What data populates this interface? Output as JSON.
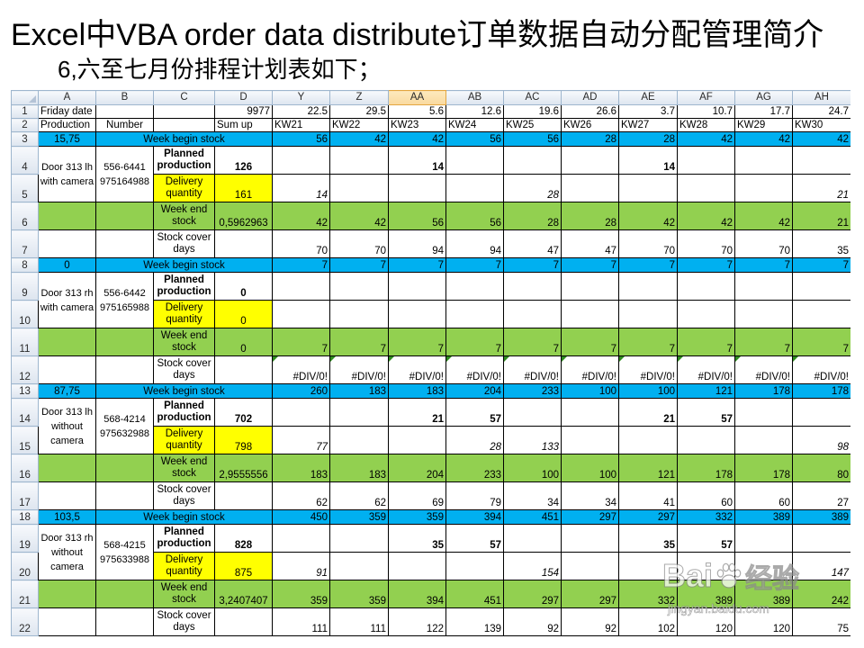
{
  "slide": {
    "title": "Excel中VBA order data distribute订单数据自动分配管理简介",
    "subtitle": "6,六至七月份排程计划表如下；"
  },
  "colors": {
    "week_begin_stock_row": "#00b0f0",
    "week_end_stock_row": "#92d050",
    "delivery_quantity": "#ffff00",
    "selected_column_header": "#f9d99f"
  },
  "sheet": {
    "columns": [
      {
        "label": "A"
      },
      {
        "label": "B"
      },
      {
        "label": "C"
      },
      {
        "label": "D"
      },
      {
        "label": "Y"
      },
      {
        "label": "Z"
      },
      {
        "label": "AA",
        "selected": true
      },
      {
        "label": "AB"
      },
      {
        "label": "AC"
      },
      {
        "label": "AD"
      },
      {
        "label": "AE"
      },
      {
        "label": "AF"
      },
      {
        "label": "AG"
      },
      {
        "label": "AH"
      }
    ],
    "row1": {
      "row": "1",
      "label": "Friday date",
      "sum": "9977",
      "weeks": [
        "22.5",
        "29.5",
        "5.6",
        "12.6",
        "19.6",
        "26.6",
        "3.7",
        "10.7",
        "17.7",
        "24.7"
      ]
    },
    "row2": {
      "row": "2",
      "production": "Production",
      "number": "Number",
      "sum": "Sum up",
      "weeks": [
        "KW21",
        "KW22",
        "KW23",
        "KW24",
        "KW25",
        "KW26",
        "KW27",
        "KW28",
        "KW29",
        "KW30"
      ]
    },
    "blocks": [
      {
        "rows": [
          "3",
          "4",
          "5",
          "6",
          "7"
        ],
        "begin_value": "15,75",
        "begin_label": "Week begin stock",
        "begin_stock": [
          "56",
          "42",
          "42",
          "56",
          "56",
          "28",
          "28",
          "42",
          "42",
          "42"
        ],
        "product": "Door 313 lh with camera",
        "number": "556-6441 975164988",
        "planned_label": "Planned production",
        "planned_sum": "126",
        "planned": [
          "",
          "",
          "14",
          "",
          "",
          "",
          "14",
          "",
          "",
          ""
        ],
        "delivery_label": "Delivery quantity",
        "delivery_sum": "161",
        "delivery": [
          "14",
          "",
          "",
          "",
          "28",
          "",
          "",
          "",
          "",
          "21"
        ],
        "end_label": "Week end stock",
        "end_sum": "0,5962963",
        "end_stock": [
          "42",
          "42",
          "56",
          "56",
          "28",
          "28",
          "42",
          "42",
          "42",
          "21"
        ],
        "cover_label": "Stock cover days",
        "cover": [
          "70",
          "70",
          "94",
          "94",
          "47",
          "47",
          "70",
          "70",
          "70",
          "35"
        ]
      },
      {
        "rows": [
          "8",
          "9",
          "10",
          "11",
          "12"
        ],
        "begin_value": "0",
        "begin_label": "Week begin stock",
        "begin_stock": [
          "7",
          "7",
          "7",
          "7",
          "7",
          "7",
          "7",
          "7",
          "7",
          "7"
        ],
        "product": "Door 313 rh with camera",
        "number": "556-6442 975165988",
        "planned_label": "Planned production",
        "planned_sum": "0",
        "planned": [
          "",
          "",
          "",
          "",
          "",
          "",
          "",
          "",
          "",
          ""
        ],
        "delivery_label": "Delivery quantity",
        "delivery_sum": "0",
        "delivery": [
          "",
          "",
          "",
          "",
          "",
          "",
          "",
          "",
          "",
          ""
        ],
        "end_label": "Week end stock",
        "end_sum": "0",
        "end_stock": [
          "7",
          "7",
          "7",
          "7",
          "7",
          "7",
          "7",
          "7",
          "7",
          "7"
        ],
        "cover_label": "Stock cover days",
        "cover": [
          "#DIV/0!",
          "#DIV/0!",
          "#DIV/0!",
          "#DIV/0!",
          "#DIV/0!",
          "#DIV/0!",
          "#DIV/0!",
          "#DIV/0!",
          "#DIV/0!",
          "#DIV/0!"
        ]
      },
      {
        "rows": [
          "13",
          "14",
          "15",
          "16",
          "17"
        ],
        "begin_value": "87,75",
        "begin_label": "Week begin stock",
        "begin_stock": [
          "260",
          "183",
          "183",
          "204",
          "233",
          "100",
          "100",
          "121",
          "178",
          "178"
        ],
        "product": "Door 313 lh without camera",
        "number": "568-4214 975632988",
        "planned_label": "Planned production",
        "planned_sum": "702",
        "planned": [
          "",
          "",
          "21",
          "57",
          "",
          "",
          "21",
          "57",
          "",
          ""
        ],
        "delivery_label": "Delivery quantity",
        "delivery_sum": "798",
        "delivery": [
          "77",
          "",
          "",
          "28",
          "133",
          "",
          "",
          "",
          "",
          "98"
        ],
        "end_label": "Week end stock",
        "end_sum": "2,9555556",
        "end_stock": [
          "183",
          "183",
          "204",
          "233",
          "100",
          "100",
          "121",
          "178",
          "178",
          "80"
        ],
        "cover_label": "Stock cover days",
        "cover": [
          "62",
          "62",
          "69",
          "79",
          "34",
          "34",
          "41",
          "60",
          "60",
          "27"
        ]
      },
      {
        "rows": [
          "18",
          "19",
          "20",
          "21",
          "22"
        ],
        "begin_value": "103,5",
        "begin_label": "Week begin stock",
        "begin_stock": [
          "450",
          "359",
          "359",
          "394",
          "451",
          "297",
          "297",
          "332",
          "389",
          "389"
        ],
        "product": "Door 313 rh without camera",
        "number": "568-4215 975633988",
        "planned_label": "Planned production",
        "planned_sum": "828",
        "planned": [
          "",
          "",
          "35",
          "57",
          "",
          "",
          "35",
          "57",
          "",
          ""
        ],
        "delivery_label": "Delivery quantity",
        "delivery_sum": "875",
        "delivery": [
          "91",
          "",
          "",
          "",
          "154",
          "",
          "",
          "",
          "",
          "147"
        ],
        "end_label": "Week end stock",
        "end_sum": "3,2407407",
        "end_stock": [
          "359",
          "359",
          "394",
          "451",
          "297",
          "297",
          "332",
          "389",
          "389",
          "242"
        ],
        "cover_label": "Stock cover days",
        "cover": [
          "111",
          "111",
          "122",
          "139",
          "92",
          "92",
          "102",
          "120",
          "120",
          "75"
        ]
      }
    ]
  },
  "watermark": {
    "brand": "Bai",
    "icon": "paw-icon",
    "product": "经验",
    "url": "jingyan.baidu.com"
  }
}
